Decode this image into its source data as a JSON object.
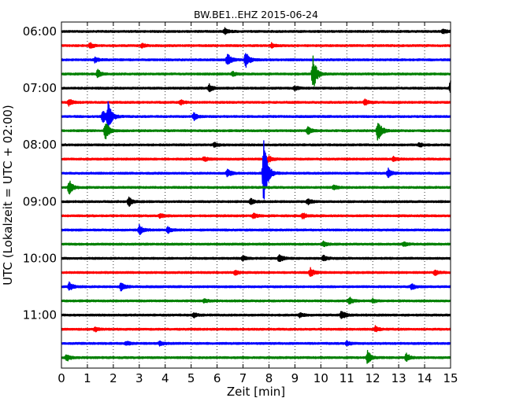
{
  "chart_data": {
    "type": "line",
    "title": "BW.BE1..EHZ 2015-06-24",
    "xlabel": "Zeit  [min]",
    "ylabel": "UTC (Lokalzeit = UTC + 02:00)",
    "xlim": [
      0,
      15
    ],
    "x_ticks": [
      "0",
      "1",
      "2",
      "3",
      "4",
      "5",
      "6",
      "7",
      "8",
      "9",
      "10",
      "11",
      "12",
      "13",
      "14",
      "15"
    ],
    "y_tick_labels": [
      "06:00",
      "07:00",
      "08:00",
      "09:00",
      "10:00",
      "11:00"
    ],
    "grid": "vertical dotted",
    "trace_interval_minutes": 15,
    "colors": [
      "#000000",
      "#ff0000",
      "#0000ff",
      "#008000"
    ],
    "series": [
      {
        "start": "06:00",
        "events": [
          [
            6.3,
            0.2
          ],
          [
            14.7,
            0.15
          ]
        ]
      },
      {
        "start": "06:15",
        "events": [
          [
            1.1,
            0.2
          ],
          [
            3.1,
            0.15
          ],
          [
            8.1,
            0.15
          ]
        ]
      },
      {
        "start": "06:30",
        "events": [
          [
            1.3,
            0.2
          ],
          [
            6.4,
            0.45
          ],
          [
            7.1,
            0.6
          ]
        ]
      },
      {
        "start": "06:45",
        "events": [
          [
            1.4,
            0.3
          ],
          [
            6.6,
            0.15
          ],
          [
            9.7,
            1.25
          ]
        ]
      },
      {
        "start": "07:00",
        "events": [
          [
            5.7,
            0.25
          ],
          [
            9.0,
            0.15
          ],
          [
            15.0,
            0.5
          ]
        ]
      },
      {
        "start": "07:15",
        "events": [
          [
            0.3,
            0.25
          ],
          [
            4.6,
            0.15
          ],
          [
            11.7,
            0.2
          ]
        ]
      },
      {
        "start": "07:30",
        "events": [
          [
            1.6,
            0.5
          ],
          [
            1.8,
            0.95
          ],
          [
            5.1,
            0.25
          ]
        ]
      },
      {
        "start": "07:45",
        "events": [
          [
            1.7,
            0.7
          ],
          [
            9.5,
            0.3
          ],
          [
            12.2,
            0.8
          ]
        ]
      },
      {
        "start": "08:00",
        "events": [
          [
            5.9,
            0.15
          ],
          [
            13.8,
            0.15
          ]
        ]
      },
      {
        "start": "08:15",
        "events": [
          [
            5.5,
            0.15
          ],
          [
            8.0,
            0.2
          ],
          [
            12.8,
            0.15
          ]
        ]
      },
      {
        "start": "08:30",
        "events": [
          [
            6.4,
            0.25
          ],
          [
            7.8,
            2.7
          ],
          [
            12.6,
            0.3
          ]
        ]
      },
      {
        "start": "08:45",
        "events": [
          [
            0.3,
            0.5
          ],
          [
            10.5,
            0.15
          ]
        ]
      },
      {
        "start": "09:00",
        "events": [
          [
            2.6,
            0.3
          ],
          [
            7.3,
            0.2
          ],
          [
            9.5,
            0.2
          ]
        ]
      },
      {
        "start": "09:15",
        "events": [
          [
            3.8,
            0.15
          ],
          [
            7.4,
            0.15
          ],
          [
            9.3,
            0.2
          ]
        ]
      },
      {
        "start": "09:30",
        "events": [
          [
            3.0,
            0.35
          ],
          [
            4.1,
            0.2
          ]
        ]
      },
      {
        "start": "09:45",
        "events": [
          [
            10.1,
            0.15
          ],
          [
            13.2,
            0.15
          ]
        ]
      },
      {
        "start": "10:00",
        "events": [
          [
            7.0,
            0.15
          ],
          [
            8.4,
            0.3
          ],
          [
            10.1,
            0.2
          ]
        ]
      },
      {
        "start": "10:15",
        "events": [
          [
            6.7,
            0.15
          ],
          [
            9.6,
            0.3
          ],
          [
            14.4,
            0.2
          ]
        ]
      },
      {
        "start": "10:30",
        "events": [
          [
            0.3,
            0.3
          ],
          [
            2.3,
            0.3
          ],
          [
            13.5,
            0.2
          ]
        ]
      },
      {
        "start": "10:45",
        "events": [
          [
            5.5,
            0.15
          ],
          [
            11.1,
            0.25
          ],
          [
            12.0,
            0.15
          ]
        ]
      },
      {
        "start": "11:00",
        "events": [
          [
            5.1,
            0.15
          ],
          [
            9.2,
            0.15
          ],
          [
            10.8,
            0.3
          ]
        ]
      },
      {
        "start": "11:15",
        "events": [
          [
            1.3,
            0.15
          ],
          [
            12.1,
            0.2
          ]
        ]
      },
      {
        "start": "11:30",
        "events": [
          [
            2.5,
            0.15
          ],
          [
            3.8,
            0.15
          ],
          [
            11.0,
            0.15
          ]
        ]
      },
      {
        "start": "11:45",
        "events": [
          [
            0.2,
            0.25
          ],
          [
            11.8,
            0.45
          ],
          [
            13.3,
            0.3
          ]
        ]
      }
    ]
  }
}
